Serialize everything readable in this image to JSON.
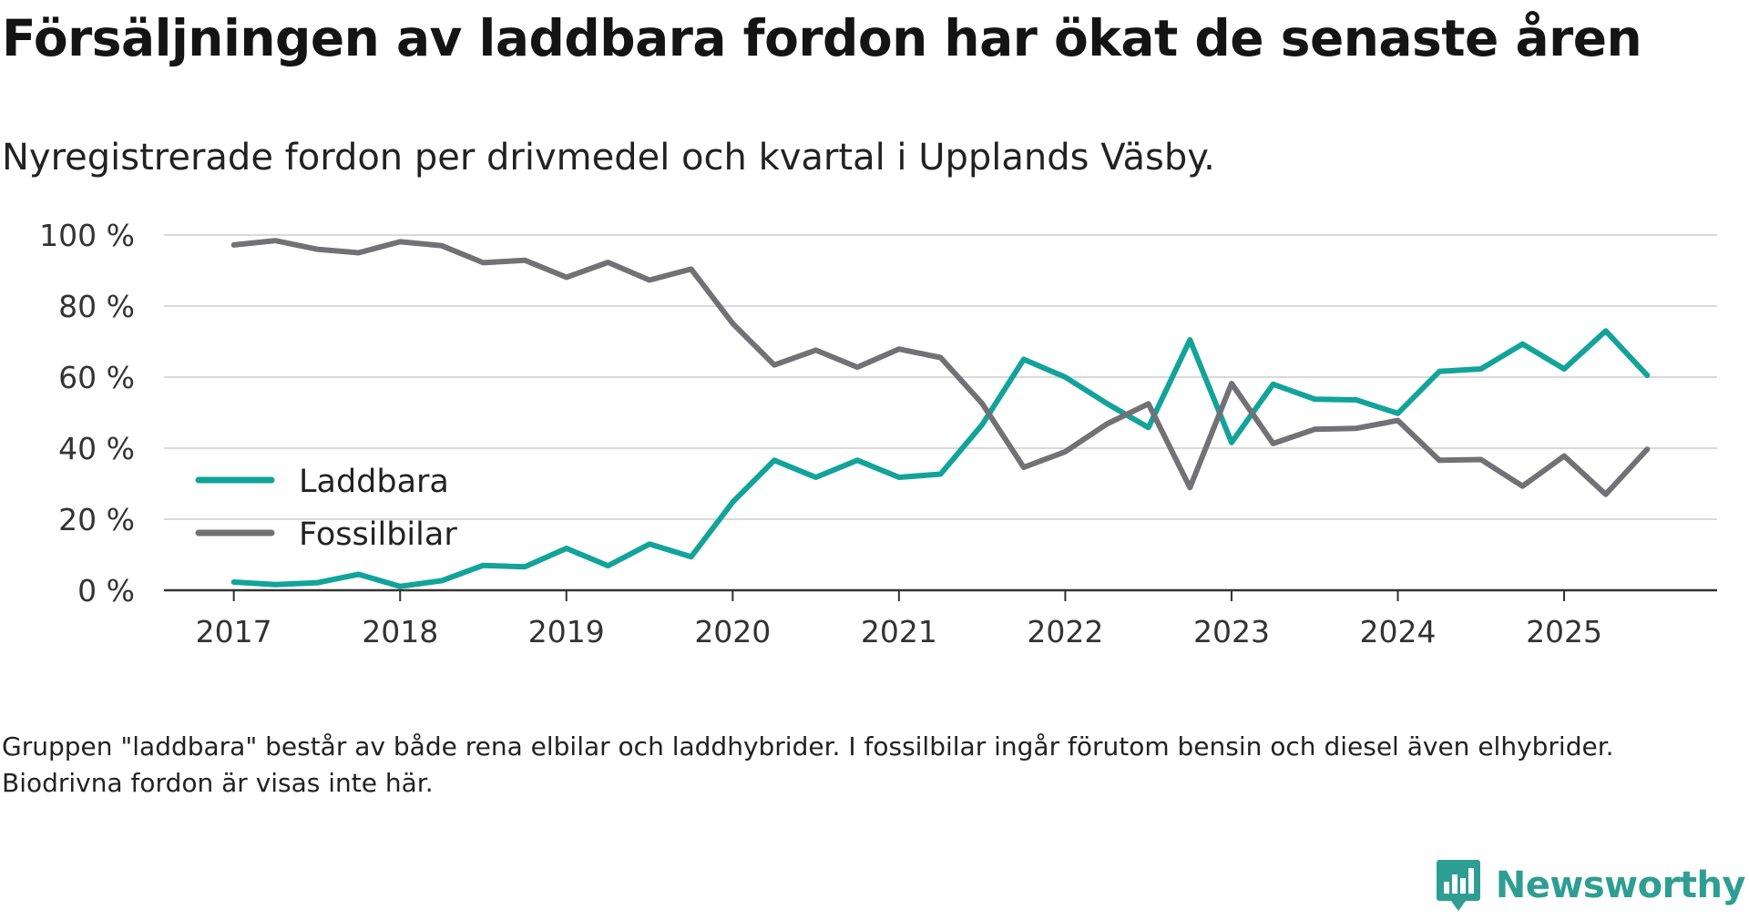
{
  "title": "Försäljningen av laddbara fordon har ökat de senaste åren",
  "subtitle": "Nyregistrerade fordon per drivmedel och kvartal i Upplands Väsby.",
  "note": "Gruppen \"laddbara\" består av både rena elbilar och laddhybrider. I fossilbilar ingår förutom bensin och diesel även elhybrider. Biodrivna fordon är visas inte här.",
  "brand": {
    "name": "Newsworthy",
    "icon": "newsworthy-logo-icon"
  },
  "colors": {
    "laddbara": "#12a39a",
    "fossil": "#717176",
    "grid": "#d9d9d9",
    "axis": "#333333",
    "text": "#333333",
    "brand": "#2e9e93"
  },
  "chart_data": {
    "type": "line",
    "title": "Försäljningen av laddbara fordon har ökat de senaste åren",
    "subtitle": "Nyregistrerade fordon per drivmedel och kvartal i Upplands Väsby.",
    "xlabel": "",
    "ylabel": "",
    "x_unit": "year (quarterly data)",
    "xlim": [
      2016.58,
      2025.92
    ],
    "ylim": [
      0,
      100
    ],
    "y_ticks": [
      0,
      20,
      40,
      60,
      80,
      100
    ],
    "y_tick_labels": [
      "0 %",
      "20 %",
      "40 %",
      "60 %",
      "80 %",
      "100 %"
    ],
    "x_ticks": [
      2017,
      2018,
      2019,
      2020,
      2021,
      2022,
      2023,
      2024,
      2025
    ],
    "x_tick_labels": [
      "2017",
      "2018",
      "2019",
      "2020",
      "2021",
      "2022",
      "2023",
      "2024",
      "2025"
    ],
    "grid": true,
    "legend_position": "left-middle",
    "x": [
      2017.0,
      2017.25,
      2017.5,
      2017.75,
      2018.0,
      2018.25,
      2018.5,
      2018.75,
      2019.0,
      2019.25,
      2019.5,
      2019.75,
      2020.0,
      2020.25,
      2020.5,
      2020.75,
      2021.0,
      2021.25,
      2021.5,
      2021.75,
      2022.0,
      2022.25,
      2022.5,
      2022.75,
      2023.0,
      2023.25,
      2023.5,
      2023.75,
      2024.0,
      2024.25,
      2024.5,
      2024.75,
      2025.0,
      2025.25,
      2025.5
    ],
    "series": [
      {
        "name": "Laddbara",
        "key": "laddbara",
        "values": [
          2.3,
          1.6,
          2.1,
          4.5,
          1.1,
          2.7,
          7.0,
          6.6,
          11.8,
          6.9,
          13.0,
          9.4,
          24.8,
          36.6,
          31.8,
          36.6,
          31.8,
          32.7,
          46.6,
          65.0,
          60.0,
          52.6,
          45.8,
          70.5,
          41.6,
          58.0,
          53.8,
          53.6,
          49.8,
          61.6,
          62.3,
          69.3,
          62.3,
          73.0,
          60.5
        ]
      },
      {
        "name": "Fossilbilar",
        "key": "fossil",
        "values": [
          97.2,
          98.4,
          96.0,
          95.0,
          98.1,
          97.0,
          92.2,
          92.9,
          88.1,
          92.3,
          87.3,
          90.4,
          75.1,
          63.4,
          67.6,
          62.8,
          67.9,
          65.5,
          52.6,
          34.6,
          39.0,
          46.8,
          52.5,
          28.9,
          58.2,
          41.3,
          45.3,
          45.6,
          47.8,
          36.6,
          36.8,
          29.3,
          37.8,
          27.0,
          39.7
        ]
      }
    ]
  }
}
